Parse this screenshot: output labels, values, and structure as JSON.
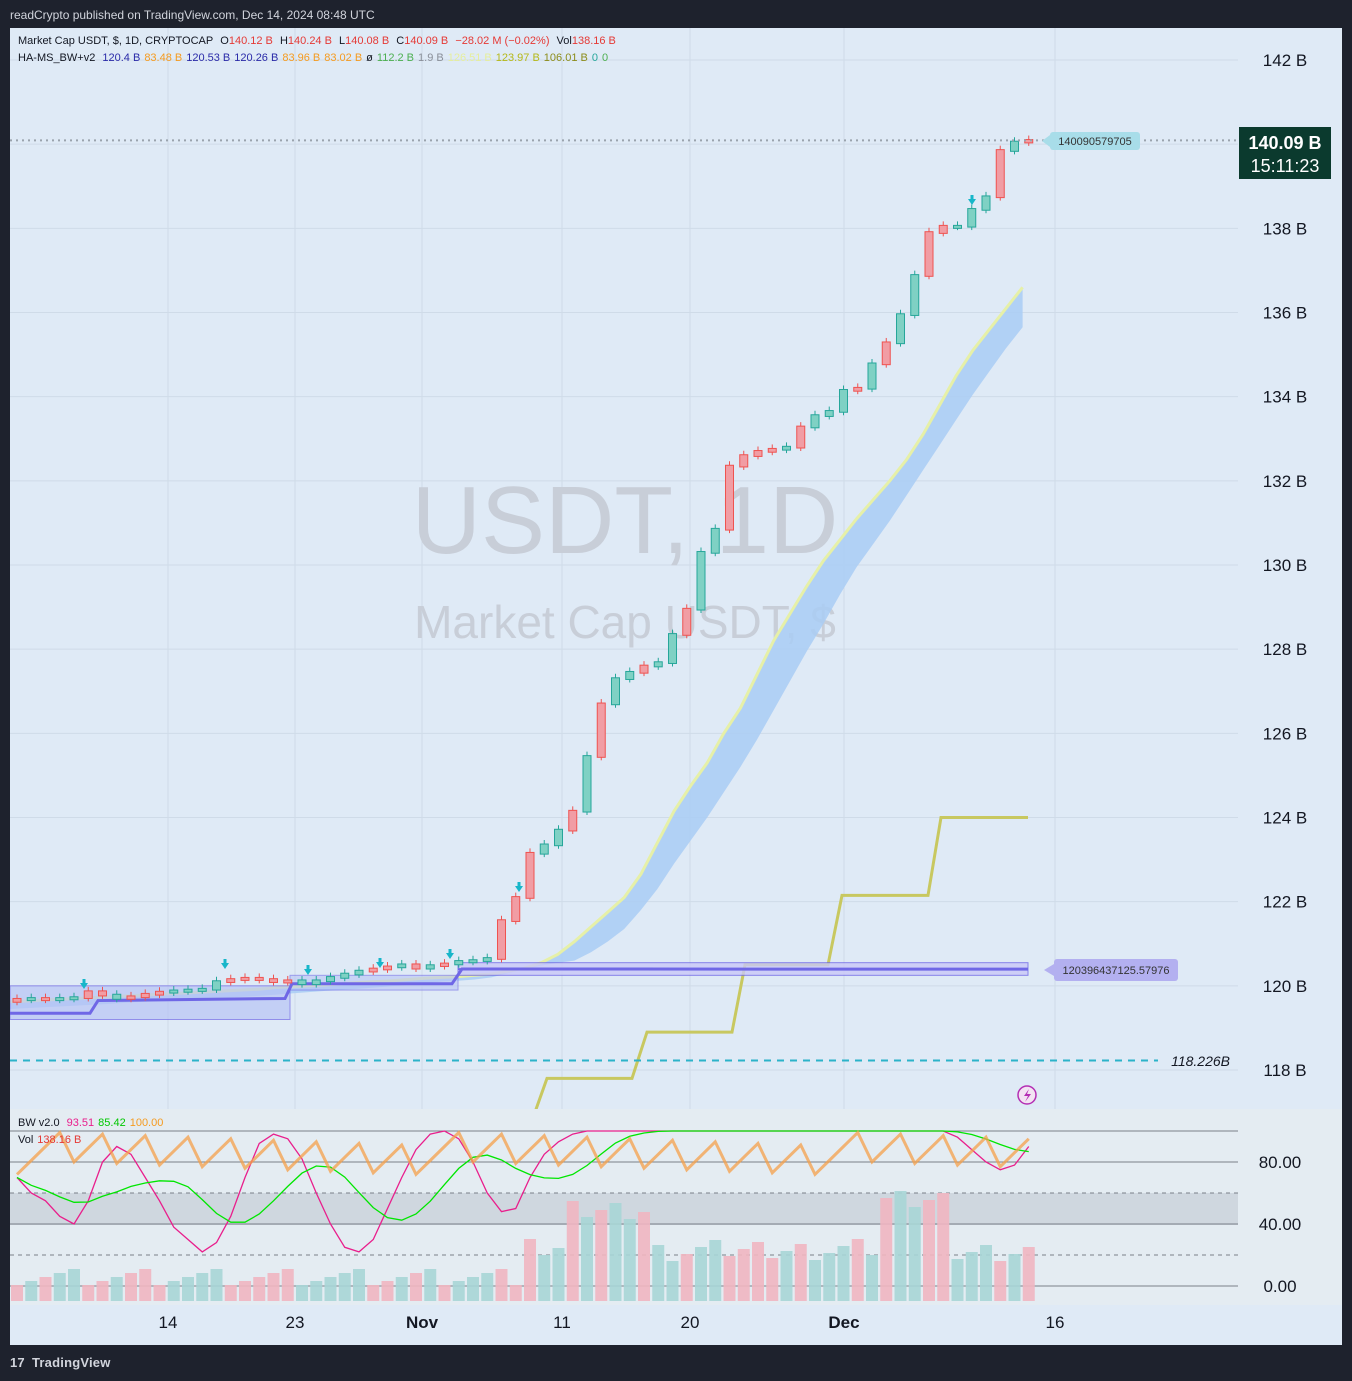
{
  "header": {
    "published_text": "readCrypto published on TradingView.com, Dec 14, 2024 08:48 UTC"
  },
  "footer": {
    "brand": "TradingView",
    "logo_glyph": "17"
  },
  "colors": {
    "up": "#26a69a",
    "down": "#ef5350",
    "band_fill": "#a9cdf5",
    "band_edge": "#e6f0a8",
    "step_line": "#c8c860",
    "support": "#6f67e6",
    "dashed": "#2bb3c9",
    "bw_pink": "#e91e8c",
    "bw_green": "#00e600",
    "bw_orange": "#f5a04a",
    "bw_blue": "#3e6fe0"
  },
  "legend_main": {
    "symbol": "Market Cap USDT, $, 1D, CRYPTOCAP",
    "o_label": "O",
    "o_value": "140.12 B",
    "h_label": "H",
    "h_value": "140.24 B",
    "l_label": "L",
    "l_value": "140.08 B",
    "c_label": "C",
    "c_value": "140.09 B",
    "change": "−28.02 M (−0.02%)",
    "vol_label": "Vol",
    "vol_value": "138.16 B"
  },
  "legend_indicator": {
    "name": "HA-MS_BW+v2",
    "values": [
      {
        "text": "120.4 B",
        "color": "#2a2aa8"
      },
      {
        "text": "83.48 B",
        "color": "#f59b20"
      },
      {
        "text": "120.53 B",
        "color": "#2a2aa8"
      },
      {
        "text": "120.26 B",
        "color": "#2a2aa8"
      },
      {
        "text": "83.96 B",
        "color": "#f59b20"
      },
      {
        "text": "83.02 B",
        "color": "#f59b20"
      },
      {
        "text": "ø",
        "color": "#131722"
      },
      {
        "text": "112.2 B",
        "color": "#4caf50"
      },
      {
        "text": "1.9 B",
        "color": "#8a8f99"
      },
      {
        "text": "126.51 B",
        "color": "#e6ee9c"
      },
      {
        "text": "123.97 B",
        "color": "#b5b818"
      },
      {
        "text": "106.01 B",
        "color": "#8c8c1a"
      },
      {
        "text": "0",
        "color": "#26a69a"
      },
      {
        "text": "0",
        "color": "#4caf50"
      }
    ]
  },
  "watermark": {
    "title": "USDT, 1D",
    "subtitle": "Market Cap USDT, $"
  },
  "price_axis": {
    "ticks": [
      "142 B",
      "138 B",
      "136 B",
      "134 B",
      "132 B",
      "130 B",
      "128 B",
      "126 B",
      "124 B",
      "122 B",
      "120 B",
      "118 B"
    ],
    "last_price": "140.09 B",
    "countdown": "15:11:23"
  },
  "labels": {
    "price_tag": "140090579705",
    "support_tag": "120396437125.57976",
    "dashed_level": "118.226B"
  },
  "time_axis": {
    "ticks": [
      "14",
      "23",
      "Nov",
      "11",
      "20",
      "Dec",
      "16"
    ]
  },
  "bw_legend": {
    "name": "BW v2.0",
    "values": [
      {
        "text": "93.51",
        "color": "#e91e8c"
      },
      {
        "text": "85.42",
        "color": "#00c800"
      },
      {
        "text": "100.00",
        "color": "#f59b20"
      }
    ],
    "vol_label": "Vol",
    "vol_value": "138.16 B"
  },
  "bw_axis": {
    "ticks": [
      "80.00",
      "40.00",
      "0.00"
    ]
  },
  "chart_data": {
    "type": "candlestick",
    "title": "USDT, 1D",
    "subtitle": "Market Cap USDT, $",
    "ylim": [
      117,
      142.8
    ],
    "y_unit": "B",
    "x_ticks": [
      "14",
      "23",
      "Nov",
      "11",
      "20",
      "Dec",
      "16"
    ],
    "candles_close": [
      119.68,
      119.7,
      119.68,
      119.7,
      119.72,
      119.86,
      119.78,
      119.7,
      119.74,
      119.8,
      119.85,
      119.88,
      119.9,
      119.92,
      120.1,
      120.15,
      120.18,
      120.15,
      120.1,
      120.12,
      120.05,
      120.12,
      120.2,
      120.28,
      120.35,
      120.4,
      120.45,
      120.5,
      120.42,
      120.48,
      120.52,
      120.58,
      120.6,
      120.65,
      121.55,
      122.1,
      123.15,
      123.35,
      123.7,
      124.15,
      125.45,
      126.7,
      127.3,
      127.45,
      127.6,
      127.68,
      128.35,
      128.95,
      130.3,
      130.85,
      132.35,
      132.6,
      132.7,
      132.75,
      132.8,
      133.28,
      133.55,
      133.65,
      134.15,
      134.2,
      134.78,
      135.28,
      135.95,
      136.88,
      137.9,
      138.05,
      138.05,
      138.45,
      138.75,
      139.85,
      140.05,
      140.09
    ],
    "candles_direction": [
      "down",
      "up",
      "down",
      "up",
      "up",
      "down",
      "down",
      "up",
      "down",
      "down",
      "down",
      "up",
      "up",
      "up",
      "up",
      "down",
      "down",
      "down",
      "down",
      "down",
      "up",
      "up",
      "up",
      "up",
      "up",
      "down",
      "down",
      "up",
      "down",
      "up",
      "down",
      "up",
      "up",
      "up",
      "down",
      "down",
      "down",
      "up",
      "up",
      "down",
      "up",
      "down",
      "up",
      "up",
      "down",
      "up",
      "up",
      "down",
      "up",
      "up",
      "down",
      "down",
      "down",
      "down",
      "up",
      "down",
      "up",
      "up",
      "up",
      "down",
      "up",
      "down",
      "up",
      "up",
      "down",
      "down",
      "up",
      "up",
      "up",
      "down",
      "up",
      "down"
    ],
    "band_upper": [
      119.62,
      119.64,
      119.66,
      119.68,
      119.7,
      119.72,
      119.74,
      119.76,
      119.78,
      119.8,
      119.82,
      119.84,
      119.86,
      119.88,
      119.9,
      119.92,
      119.96,
      119.98,
      120.0,
      120.02,
      120.05,
      120.08,
      120.1,
      120.12,
      120.15,
      120.18,
      120.2,
      120.22,
      120.25,
      120.28,
      120.35,
      120.42,
      120.55,
      120.75,
      121.05,
      121.4,
      121.75,
      122.1,
      122.65,
      123.4,
      124.15,
      124.75,
      125.3,
      126.0,
      126.6,
      127.4,
      128.2,
      128.85,
      129.5,
      130.1,
      130.6,
      131.1,
      131.55,
      132.0,
      132.5,
      133.1,
      133.8,
      134.5,
      135.1,
      135.6,
      136.1,
      136.6
    ],
    "band_lower": [
      119.45,
      119.47,
      119.49,
      119.51,
      119.53,
      119.55,
      119.57,
      119.6,
      119.62,
      119.64,
      119.66,
      119.68,
      119.7,
      119.72,
      119.74,
      119.76,
      119.79,
      119.82,
      119.85,
      119.88,
      119.9,
      119.93,
      119.96,
      119.99,
      120.02,
      120.06,
      120.1,
      120.12,
      120.15,
      120.2,
      120.3,
      120.4,
      120.48,
      120.55,
      120.6,
      120.8,
      121.05,
      121.35,
      121.8,
      122.3,
      122.9,
      123.45,
      124.0,
      124.6,
      125.2,
      125.85,
      126.55,
      127.25,
      127.95,
      128.6,
      129.3,
      129.95,
      130.5,
      131.05,
      131.65,
      132.25,
      132.85,
      133.45,
      134.05,
      134.6,
      135.15,
      135.65
    ],
    "step_line": [
      117.0,
      117.8,
      117.8,
      118.9,
      118.9,
      120.5,
      120.5,
      122.15,
      122.15,
      124.0,
      124.0
    ],
    "support_level": 120.3964,
    "dashed_level": 118.226
  }
}
